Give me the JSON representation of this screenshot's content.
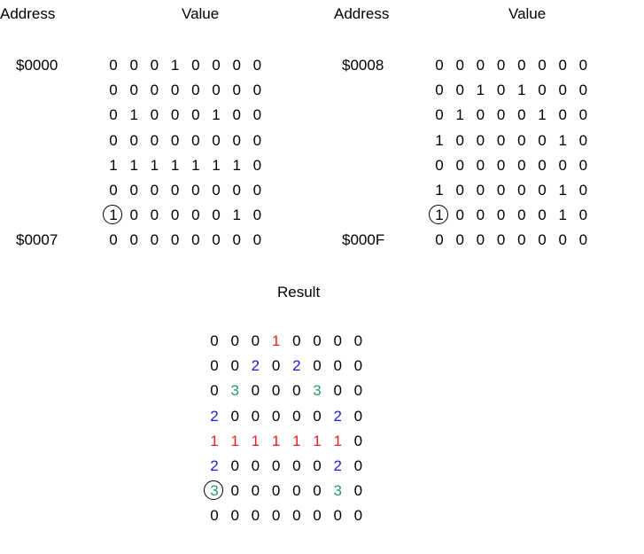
{
  "headers": {
    "left_address": "Address",
    "left_value": "Value",
    "right_address": "Address",
    "right_value": "Value",
    "result": "Result"
  },
  "left_block": {
    "start_address": "$0000",
    "end_address": "$0007",
    "rows": [
      [
        0,
        0,
        0,
        1,
        0,
        0,
        0,
        0
      ],
      [
        0,
        0,
        0,
        0,
        0,
        0,
        0,
        0
      ],
      [
        0,
        1,
        0,
        0,
        0,
        1,
        0,
        0
      ],
      [
        0,
        0,
        0,
        0,
        0,
        0,
        0,
        0
      ],
      [
        1,
        1,
        1,
        1,
        1,
        1,
        1,
        0
      ],
      [
        0,
        0,
        0,
        0,
        0,
        0,
        0,
        0
      ],
      [
        1,
        0,
        0,
        0,
        0,
        0,
        1,
        0
      ],
      [
        0,
        0,
        0,
        0,
        0,
        0,
        0,
        0
      ]
    ],
    "circled": [
      6,
      0
    ]
  },
  "right_block": {
    "start_address": "$0008",
    "end_address": "$000F",
    "rows": [
      [
        0,
        0,
        0,
        0,
        0,
        0,
        0,
        0
      ],
      [
        0,
        0,
        1,
        0,
        1,
        0,
        0,
        0
      ],
      [
        0,
        1,
        0,
        0,
        0,
        1,
        0,
        0
      ],
      [
        1,
        0,
        0,
        0,
        0,
        0,
        1,
        0
      ],
      [
        0,
        0,
        0,
        0,
        0,
        0,
        0,
        0
      ],
      [
        1,
        0,
        0,
        0,
        0,
        0,
        1,
        0
      ],
      [
        1,
        0,
        0,
        0,
        0,
        0,
        1,
        0
      ],
      [
        0,
        0,
        0,
        0,
        0,
        0,
        0,
        0
      ]
    ],
    "circled": [
      6,
      0
    ]
  },
  "result_block": {
    "rows": [
      [
        0,
        0,
        0,
        1,
        0,
        0,
        0,
        0
      ],
      [
        0,
        0,
        2,
        0,
        2,
        0,
        0,
        0
      ],
      [
        0,
        3,
        0,
        0,
        0,
        3,
        0,
        0
      ],
      [
        2,
        0,
        0,
        0,
        0,
        0,
        2,
        0
      ],
      [
        1,
        1,
        1,
        1,
        1,
        1,
        1,
        0
      ],
      [
        2,
        0,
        0,
        0,
        0,
        0,
        2,
        0
      ],
      [
        3,
        0,
        0,
        0,
        0,
        0,
        3,
        0
      ],
      [
        0,
        0,
        0,
        0,
        0,
        0,
        0,
        0
      ]
    ],
    "circled": [
      6,
      0
    ]
  },
  "colors": {
    "0": "#000000",
    "1": "#e8202a",
    "2": "#1c1ce0",
    "3": "#2e9a66"
  }
}
